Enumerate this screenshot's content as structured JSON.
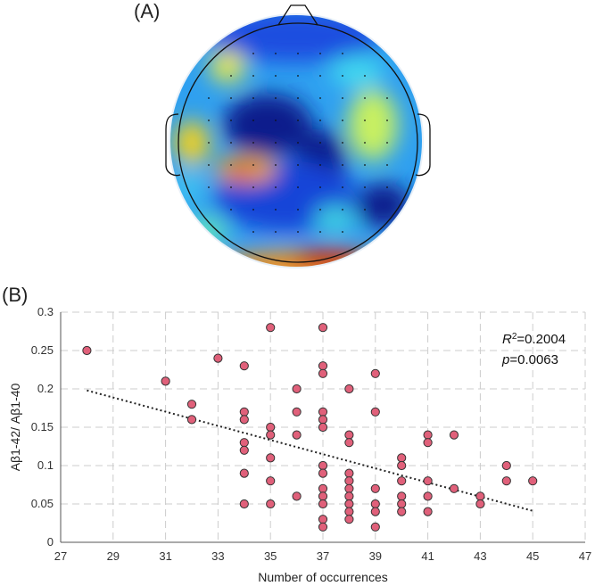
{
  "panels": {
    "a_label": "(A)",
    "b_label": "(B)"
  },
  "colors": {
    "point_fill": "#e0607a",
    "point_stroke": "#333333",
    "trend": "#222222",
    "grid": "#cccccc"
  },
  "annotation": {
    "r2_prefix": "R",
    "r2_sup": "2",
    "r2_value": "=0.2004",
    "p_prefix": "p",
    "p_value": "=0.0063"
  },
  "chart_data": {
    "type": "scatter",
    "title": "",
    "xlabel": "Number of occurrences",
    "ylabel": "Aβ1-42/ Aβ1-40",
    "xlim": [
      27,
      47
    ],
    "ylim": [
      0,
      0.3
    ],
    "xticks": [
      27,
      29,
      31,
      33,
      35,
      37,
      39,
      41,
      43,
      45,
      47
    ],
    "yticks": [
      0,
      0.05,
      0.1,
      0.15,
      0.2,
      0.25,
      0.3
    ],
    "xtick_labels": [
      "27",
      "29",
      "31",
      "33",
      "35",
      "37",
      "39",
      "41",
      "43",
      "45",
      "47"
    ],
    "ytick_labels": [
      "0",
      "0.05",
      "0.1",
      "0.15",
      "0.2",
      "0.25",
      "0.3"
    ],
    "grid": true,
    "trendline": {
      "x": [
        28,
        45
      ],
      "y": [
        0.198,
        0.041
      ]
    },
    "points": [
      [
        28,
        0.25
      ],
      [
        31,
        0.21
      ],
      [
        32,
        0.18
      ],
      [
        32,
        0.16
      ],
      [
        33,
        0.24
      ],
      [
        34,
        0.23
      ],
      [
        34,
        0.17
      ],
      [
        34,
        0.16
      ],
      [
        34,
        0.13
      ],
      [
        34,
        0.12
      ],
      [
        34,
        0.09
      ],
      [
        34,
        0.05
      ],
      [
        35,
        0.28
      ],
      [
        35,
        0.15
      ],
      [
        35,
        0.14
      ],
      [
        35,
        0.11
      ],
      [
        35,
        0.08
      ],
      [
        35,
        0.05
      ],
      [
        36,
        0.2
      ],
      [
        36,
        0.17
      ],
      [
        36,
        0.14
      ],
      [
        36,
        0.06
      ],
      [
        37,
        0.28
      ],
      [
        37,
        0.23
      ],
      [
        37,
        0.22
      ],
      [
        37,
        0.17
      ],
      [
        37,
        0.16
      ],
      [
        37,
        0.15
      ],
      [
        37,
        0.1
      ],
      [
        37,
        0.09
      ],
      [
        37,
        0.07
      ],
      [
        37,
        0.06
      ],
      [
        37,
        0.05
      ],
      [
        37,
        0.03
      ],
      [
        37,
        0.02
      ],
      [
        38,
        0.2
      ],
      [
        38,
        0.14
      ],
      [
        38,
        0.13
      ],
      [
        38,
        0.09
      ],
      [
        38,
        0.08
      ],
      [
        38,
        0.07
      ],
      [
        38,
        0.06
      ],
      [
        38,
        0.05
      ],
      [
        38,
        0.04
      ],
      [
        38,
        0.03
      ],
      [
        39,
        0.22
      ],
      [
        39,
        0.17
      ],
      [
        39,
        0.07
      ],
      [
        39,
        0.05
      ],
      [
        39,
        0.04
      ],
      [
        39,
        0.02
      ],
      [
        40,
        0.11
      ],
      [
        40,
        0.1
      ],
      [
        40,
        0.08
      ],
      [
        40,
        0.06
      ],
      [
        40,
        0.05
      ],
      [
        40,
        0.04
      ],
      [
        41,
        0.14
      ],
      [
        41,
        0.13
      ],
      [
        41,
        0.08
      ],
      [
        41,
        0.06
      ],
      [
        41,
        0.04
      ],
      [
        42,
        0.14
      ],
      [
        42,
        0.07
      ],
      [
        43,
        0.06
      ],
      [
        43,
        0.05
      ],
      [
        44,
        0.1
      ],
      [
        44,
        0.08
      ],
      [
        45,
        0.08
      ]
    ]
  }
}
